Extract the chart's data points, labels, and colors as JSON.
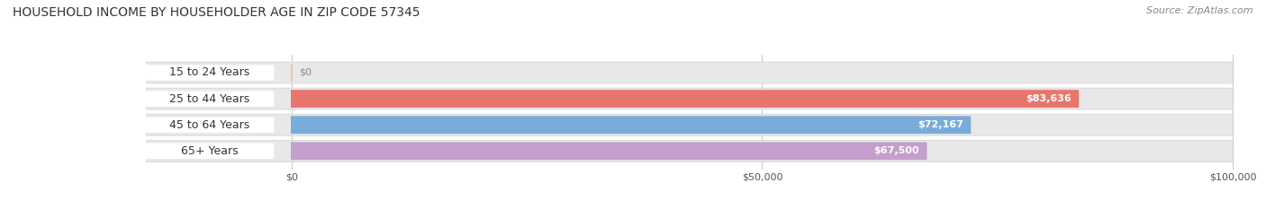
{
  "title": "HOUSEHOLD INCOME BY HOUSEHOLDER AGE IN ZIP CODE 57345",
  "source": "Source: ZipAtlas.com",
  "categories": [
    "15 to 24 Years",
    "25 to 44 Years",
    "45 to 64 Years",
    "65+ Years"
  ],
  "values": [
    0,
    83636,
    72167,
    67500
  ],
  "value_labels": [
    "$0",
    "$83,636",
    "$72,167",
    "$67,500"
  ],
  "bar_colors": [
    "#f2c49b",
    "#e8756c",
    "#7aacd9",
    "#c49ecc"
  ],
  "bar_bg_color": "#e8e8e8",
  "label_bg_color": "#ffffff",
  "xmax": 100000,
  "xticks": [
    0,
    50000,
    100000
  ],
  "xticklabels": [
    "$0",
    "$50,000",
    "$100,000"
  ],
  "title_fontsize": 10,
  "source_fontsize": 8,
  "background_color": "#ffffff",
  "cat_label_fontsize": 9,
  "val_label_fontsize": 8
}
